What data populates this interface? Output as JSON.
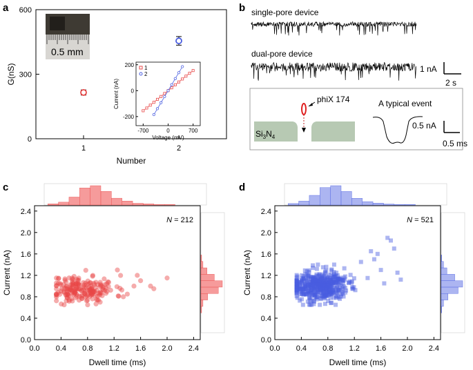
{
  "panels": {
    "a": {
      "letter": "a"
    },
    "b": {
      "letter": "b"
    },
    "c": {
      "letter": "c"
    },
    "d": {
      "letter": "d"
    }
  },
  "panel_b": {
    "trace1_label": "single-pore device",
    "trace2_label": "dual-pore device",
    "scale_current": "1 nA",
    "scale_time": "2 s",
    "inset_membrane_label": "Si",
    "inset_membrane_sub1": "3",
    "inset_membrane_mid": "N",
    "inset_membrane_sub2": "4",
    "inset_dna_label": "phiX 174",
    "inset_event_title": "A typical event",
    "inset_scale_current": "0.5 nA",
    "inset_scale_time": "0.5 ms"
  },
  "panel_a_image_label": "0.5 mm",
  "colors": {
    "red": "#e84848",
    "blue": "#4a5ee0",
    "red_fill": "#f58a8a",
    "blue_fill": "#9ea8ef",
    "membrane": "#b7c9b3"
  },
  "chart_data": [
    {
      "id": "a-main",
      "type": "scatter",
      "title": "",
      "xlabel": "Number",
      "ylabel": "G(nS)",
      "xlim": [
        0.5,
        2.5
      ],
      "ylim": [
        0,
        600
      ],
      "xticks": [
        1,
        2
      ],
      "yticks": [
        0,
        300,
        600
      ],
      "points": [
        {
          "x": 1,
          "y": 215,
          "err": 12,
          "color": "red"
        },
        {
          "x": 2,
          "y": 455,
          "err": 20,
          "color": "blue"
        }
      ]
    },
    {
      "id": "a-inset",
      "type": "line",
      "xlabel": "Voltage (mV)",
      "ylabel": "Current (nA)",
      "xlim": [
        -900,
        900
      ],
      "ylim": [
        -270,
        220
      ],
      "xticks": [
        -700,
        0,
        700
      ],
      "yticks": [
        -200,
        0,
        200
      ],
      "series": [
        {
          "name": "1",
          "color": "red",
          "marker": "square",
          "x": [
            -700,
            -600,
            -500,
            -400,
            -300,
            -200,
            -100,
            0,
            100,
            200,
            300,
            400,
            500,
            600,
            700
          ],
          "y": [
            -155,
            -134,
            -112,
            -90,
            -67,
            -45,
            -22,
            0,
            22,
            45,
            67,
            90,
            112,
            134,
            155
          ]
        },
        {
          "name": "2",
          "color": "blue",
          "marker": "circle",
          "x": [
            -400,
            -300,
            -200,
            -100,
            0,
            100,
            200,
            300,
            400
          ],
          "y": [
            -185,
            -139,
            -93,
            -46,
            0,
            46,
            93,
            139,
            185
          ]
        }
      ],
      "legend": "top-left"
    },
    {
      "id": "c",
      "type": "scatter",
      "xlabel": "Dwell time (ms)",
      "ylabel": "Current (nA)",
      "xlim": [
        0.0,
        2.5
      ],
      "ylim": [
        0.0,
        2.5
      ],
      "xticks": [
        "0.0",
        "0.4",
        "0.8",
        "1.2",
        "1.6",
        "2.0",
        "2.4"
      ],
      "yticks": [
        "0.0",
        "0.4",
        "0.8",
        "1.2",
        "1.6",
        "2.0",
        "2.4"
      ],
      "annotation_prefix": "N",
      "annotation_value": " = 212",
      "marker": "circle",
      "color": "red",
      "n": 212,
      "x_mean": 0.72,
      "x_sd": 0.25,
      "y_mean": 0.94,
      "y_sd": 0.13,
      "extra_points": [
        [
          1.55,
          1.2
        ],
        [
          1.6,
          1.1
        ],
        [
          1.75,
          1.0
        ],
        [
          1.8,
          0.95
        ],
        [
          2.0,
          1.15
        ],
        [
          1.4,
          0.85
        ],
        [
          1.5,
          1.0
        ],
        [
          1.25,
          1.3
        ]
      ],
      "hist_x_counts": [
        2,
        5,
        14,
        30,
        34,
        24,
        12,
        7,
        3,
        2,
        1,
        1
      ],
      "hist_y_counts": [
        1,
        3,
        10,
        26,
        32,
        20,
        9,
        3,
        1
      ]
    },
    {
      "id": "d",
      "type": "scatter",
      "xlabel": "Dwell time (ms)",
      "ylabel": "Current (nA)",
      "xlim": [
        0.0,
        2.5
      ],
      "ylim": [
        0.0,
        2.5
      ],
      "xticks": [
        "0.0",
        "0.4",
        "0.8",
        "1.2",
        "1.6",
        "2.0",
        "2.4"
      ],
      "yticks": [
        "0.0",
        "0.4",
        "0.8",
        "1.2",
        "1.6",
        "2.0",
        "2.4"
      ],
      "annotation_prefix": "N",
      "annotation_value": " = 521",
      "marker": "square",
      "color": "blue",
      "n": 521,
      "x_mean": 0.66,
      "x_sd": 0.22,
      "y_mean": 1.0,
      "y_sd": 0.14,
      "extra_points": [
        [
          1.45,
          1.65
        ],
        [
          1.55,
          1.6
        ],
        [
          1.7,
          1.9
        ],
        [
          1.75,
          1.85
        ],
        [
          1.8,
          1.7
        ],
        [
          1.6,
          1.3
        ],
        [
          1.85,
          1.25
        ],
        [
          1.9,
          1.12
        ],
        [
          1.3,
          1.45
        ],
        [
          1.4,
          1.15
        ],
        [
          1.5,
          1.5
        ],
        [
          1.65,
          1.05
        ]
      ],
      "hist_x_counts": [
        3,
        8,
        20,
        36,
        40,
        28,
        14,
        7,
        4,
        2,
        1,
        1
      ],
      "hist_y_counts": [
        1,
        4,
        12,
        30,
        38,
        24,
        10,
        4,
        1
      ]
    }
  ]
}
